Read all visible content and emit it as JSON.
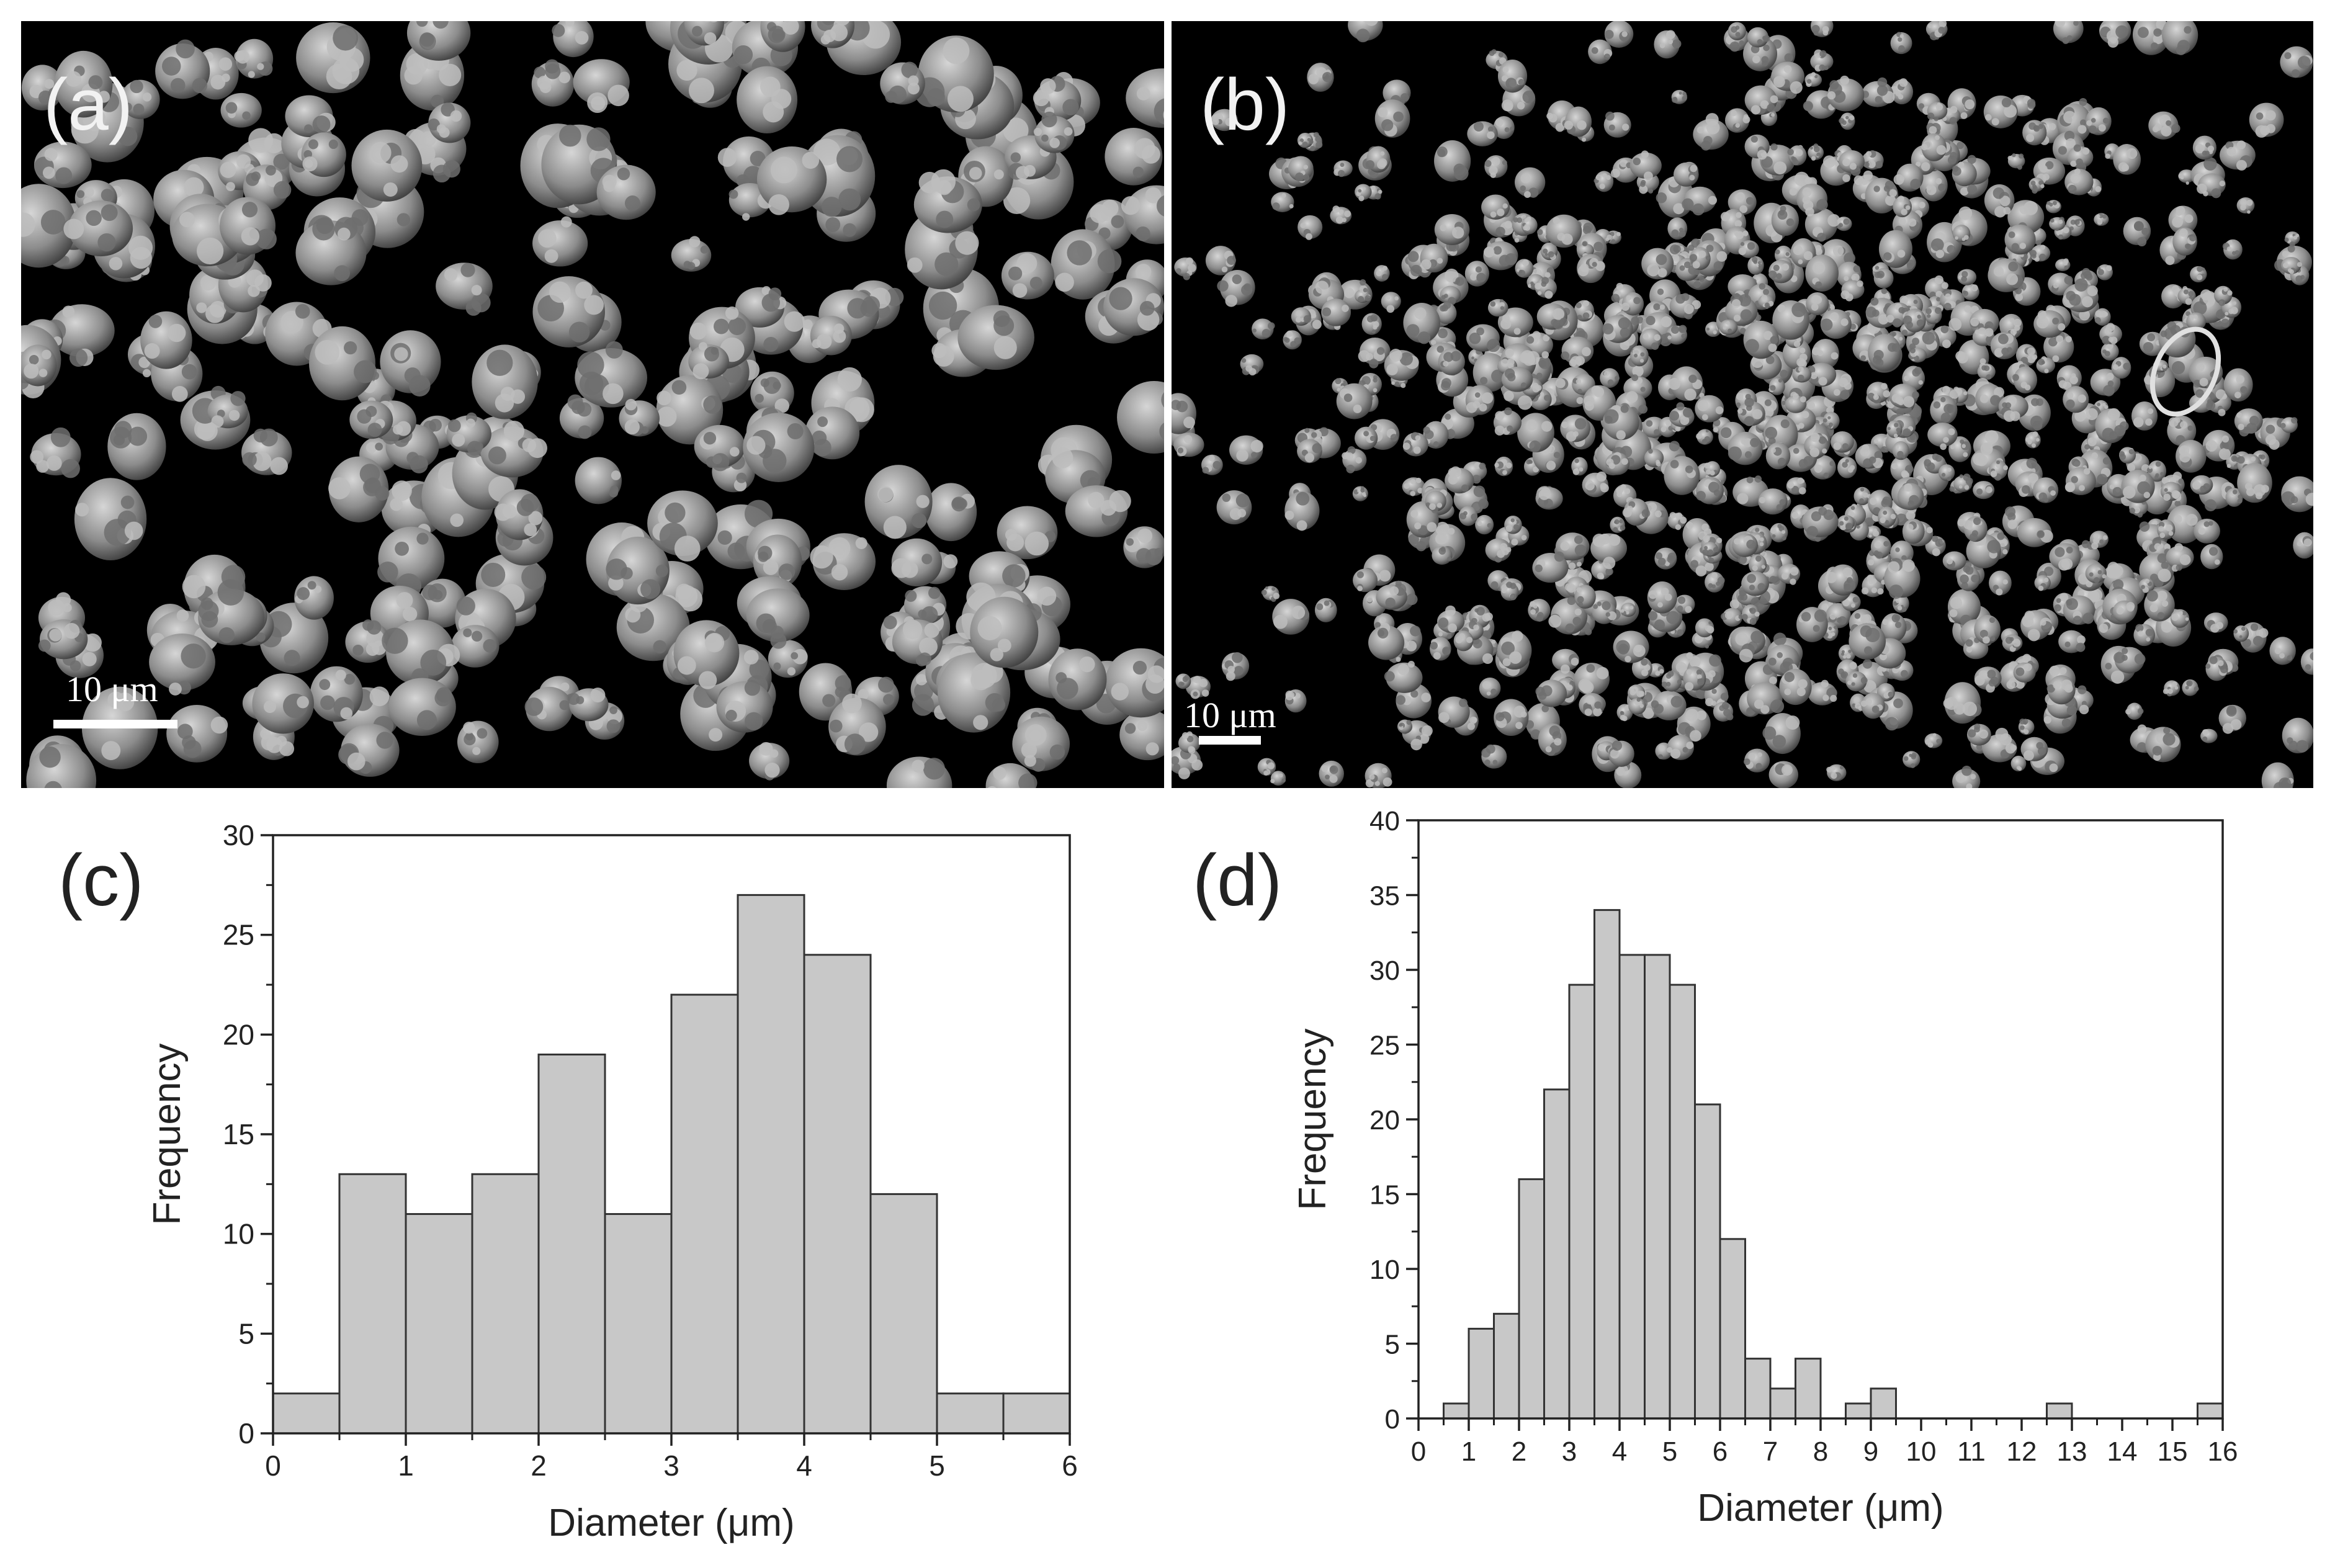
{
  "panels": {
    "a": {
      "label": "(a)",
      "scale_text": "10 μm"
    },
    "b": {
      "label": "(b)",
      "scale_text": "10 μm"
    },
    "c": {
      "label": "(c)"
    },
    "d": {
      "label": "(d)"
    }
  },
  "colors": {
    "sem_background": "#000000",
    "particle": "#9a9a9a",
    "bar_fill": "#c8c8c8",
    "bar_stroke": "#333333",
    "axis": "#222222"
  },
  "chart_data": [
    {
      "id": "c",
      "type": "bar",
      "title": "",
      "xlabel": "Diameter (μm)",
      "ylabel": "Frequency",
      "xlim": [
        0,
        6
      ],
      "ylim": [
        0,
        30
      ],
      "bin_width": 0.5,
      "x": [
        0,
        0.5,
        1,
        1.5,
        2,
        2.5,
        3,
        3.5,
        4,
        4.5,
        5,
        5.5
      ],
      "values": [
        2,
        13,
        11,
        13,
        19,
        11,
        22,
        27,
        24,
        12,
        2,
        2
      ],
      "xticks": [
        0,
        1,
        2,
        3,
        4,
        5,
        6
      ],
      "yticks": [
        0,
        5,
        10,
        15,
        20,
        25,
        30
      ],
      "grid": false,
      "legend": "none"
    },
    {
      "id": "d",
      "type": "bar",
      "title": "",
      "xlabel": "Diameter (μm)",
      "ylabel": "Frequency",
      "xlim": [
        0,
        16
      ],
      "ylim": [
        0,
        40
      ],
      "bin_width": 0.5,
      "x": [
        0.5,
        1,
        1.5,
        2,
        2.5,
        3,
        3.5,
        4,
        4.5,
        5,
        5.5,
        6,
        6.5,
        7,
        7.5,
        8,
        8.5,
        9,
        9.5,
        10,
        10.5,
        11,
        11.5,
        12,
        12.5,
        13,
        13.5,
        14,
        14.5,
        15,
        15.5
      ],
      "values": [
        1,
        6,
        7,
        16,
        22,
        29,
        34,
        31,
        31,
        29,
        21,
        12,
        4,
        2,
        4,
        0,
        1,
        2,
        0,
        0,
        0,
        0,
        0,
        0,
        1,
        0,
        0,
        0,
        0,
        0,
        1
      ],
      "xticks": [
        0,
        1,
        2,
        3,
        4,
        5,
        6,
        7,
        8,
        9,
        10,
        11,
        12,
        13,
        14,
        15,
        16
      ],
      "yticks": [
        0,
        5,
        10,
        15,
        20,
        25,
        30,
        35,
        40
      ],
      "grid": false,
      "legend": "none"
    }
  ]
}
